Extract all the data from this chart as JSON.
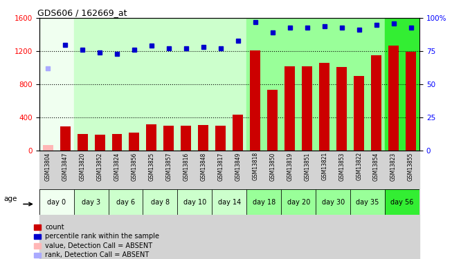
{
  "title": "GDS606 / 162669_at",
  "samples": [
    "GSM13804",
    "GSM13847",
    "GSM13820",
    "GSM13852",
    "GSM13824",
    "GSM13856",
    "GSM13825",
    "GSM13857",
    "GSM13816",
    "GSM13848",
    "GSM13817",
    "GSM13849",
    "GSM13818",
    "GSM13850",
    "GSM13819",
    "GSM13851",
    "GSM13821",
    "GSM13853",
    "GSM13822",
    "GSM13854",
    "GSM13823",
    "GSM13855"
  ],
  "bar_values": [
    60,
    290,
    195,
    190,
    195,
    210,
    315,
    300,
    300,
    305,
    295,
    430,
    1210,
    730,
    1020,
    1020,
    1060,
    1010,
    900,
    1150,
    1270,
    1190
  ],
  "bar_colors": [
    "#ffb6b6",
    "#cc0000",
    "#cc0000",
    "#cc0000",
    "#cc0000",
    "#cc0000",
    "#cc0000",
    "#cc0000",
    "#cc0000",
    "#cc0000",
    "#cc0000",
    "#cc0000",
    "#cc0000",
    "#cc0000",
    "#cc0000",
    "#cc0000",
    "#cc0000",
    "#cc0000",
    "#cc0000",
    "#cc0000",
    "#cc0000",
    "#cc0000"
  ],
  "rank_values_pct": [
    62,
    80,
    76,
    74,
    73,
    76,
    79,
    77,
    77,
    78,
    77,
    83,
    97,
    89,
    93,
    93,
    94,
    93,
    91,
    95,
    96,
    93
  ],
  "rank_absent": [
    true,
    false,
    false,
    false,
    false,
    false,
    false,
    false,
    false,
    false,
    false,
    false,
    false,
    false,
    false,
    false,
    false,
    false,
    false,
    false,
    false,
    false
  ],
  "rank_color_normal": "#0000cc",
  "rank_color_absent": "#aaaaff",
  "ylim_left": [
    0,
    1600
  ],
  "ylim_right": [
    0,
    100
  ],
  "yticks_left": [
    0,
    400,
    800,
    1200,
    1600
  ],
  "yticks_right": [
    0,
    25,
    50,
    75,
    100
  ],
  "day_groups": [
    {
      "label": "day 0",
      "start": 0,
      "end": 1,
      "color": "#f0fff0"
    },
    {
      "label": "day 3",
      "start": 2,
      "end": 3,
      "color": "#ccffcc"
    },
    {
      "label": "day 6",
      "start": 4,
      "end": 5,
      "color": "#ccffcc"
    },
    {
      "label": "day 8",
      "start": 6,
      "end": 7,
      "color": "#ccffcc"
    },
    {
      "label": "day 10",
      "start": 8,
      "end": 9,
      "color": "#ccffcc"
    },
    {
      "label": "day 14",
      "start": 10,
      "end": 11,
      "color": "#ccffcc"
    },
    {
      "label": "day 18",
      "start": 12,
      "end": 13,
      "color": "#99ff99"
    },
    {
      "label": "day 20",
      "start": 14,
      "end": 15,
      "color": "#99ff99"
    },
    {
      "label": "day 30",
      "start": 16,
      "end": 17,
      "color": "#99ff99"
    },
    {
      "label": "day 35",
      "start": 18,
      "end": 19,
      "color": "#99ff99"
    },
    {
      "label": "day 56",
      "start": 20,
      "end": 21,
      "color": "#33ee33"
    }
  ],
  "sample_bg_color": "#d3d3d3",
  "legend_items": [
    {
      "label": "count",
      "color": "#cc0000"
    },
    {
      "label": "percentile rank within the sample",
      "color": "#0000cc"
    },
    {
      "label": "value, Detection Call = ABSENT",
      "color": "#ffb6b6"
    },
    {
      "label": "rank, Detection Call = ABSENT",
      "color": "#aaaaff"
    }
  ]
}
